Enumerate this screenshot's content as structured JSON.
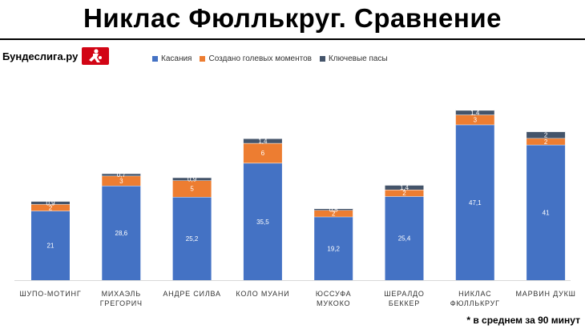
{
  "header": {
    "title": "Никлас Фюллькруг.  Сравнение",
    "brand": "Бундеслига.ру",
    "footnote": "* в среднем за  90 минут"
  },
  "colors": {
    "touches": "#4472c4",
    "chances": "#ed7d31",
    "key_passes": "#44546a",
    "logo": "#d20515"
  },
  "icons": {
    "logo": "bundesliga-logo-icon"
  },
  "chart_data": {
    "type": "bar",
    "stacked": true,
    "title": "",
    "xlabel": "",
    "ylabel": "",
    "grid": false,
    "legend_position": "top",
    "categories": [
      "ШУПО-МОТИНГ",
      "МИХАЭЛЬ ГРЕГОРИЧ",
      "АНДРЕ СИЛВА",
      "КОЛО МУАНИ",
      "ЮССУФА МУКОКО",
      "ШЕРАЛДО БЕККЕР",
      "НИКЛАС ФЮЛЛЬКРУГ",
      "МАРВИН ДУКШ"
    ],
    "category_lines": [
      [
        "ШУПО-МОТИНГ"
      ],
      [
        "МИХАЭЛЬ",
        "ГРЕГОРИЧ"
      ],
      [
        "АНДРЕ СИЛВА"
      ],
      [
        "КОЛО МУАНИ"
      ],
      [
        "ЮССУФА",
        "МУКОКО"
      ],
      [
        "ШЕРАЛДО",
        "БЕККЕР"
      ],
      [
        "НИКЛАС",
        "ФЮЛЛЬКРУГ"
      ],
      [
        "МАРВИН ДУКШ"
      ]
    ],
    "series": [
      {
        "name": "Касания",
        "values": [
          21,
          28.6,
          25.2,
          35.5,
          19.2,
          25.4,
          47.1,
          41
        ],
        "labels": [
          "21",
          "28,6",
          "25,2",
          "35,5",
          "19,2",
          "25,4",
          "47,1",
          "41"
        ]
      },
      {
        "name": "Создано голевых моментов",
        "values": [
          2,
          3,
          5,
          6,
          2,
          2,
          3,
          2
        ],
        "labels": [
          "2",
          "3",
          "5",
          "6",
          "2",
          "2",
          "3",
          "2"
        ]
      },
      {
        "name": "Ключевые пасы",
        "values": [
          0.9,
          0.7,
          0.9,
          1.4,
          0.5,
          1.4,
          1.4,
          2
        ],
        "labels": [
          "0,9",
          "0,7",
          "0,9",
          "1,4",
          "0,5",
          "1,4",
          "1,4",
          "2"
        ]
      }
    ],
    "ylim": [
      0,
      60
    ]
  }
}
